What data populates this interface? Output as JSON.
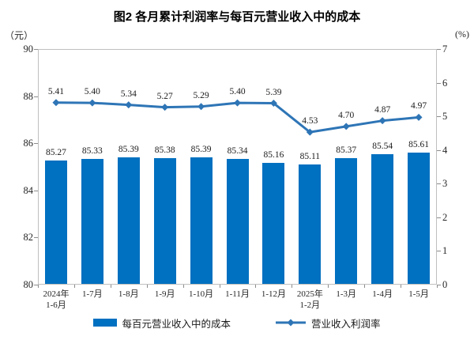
{
  "title": "图2  各月累计利润率与每百元营业收入中的成本",
  "chart_data": {
    "type": "bar",
    "subtype": "bar+line dual axis",
    "title": "图2  各月累计利润率与每百元营业收入中的成本",
    "categories": [
      "2024年\n1-6月",
      "1-7月",
      "1-8月",
      "1-9月",
      "1-10月",
      "1-11月",
      "1-12月",
      "2025年\n1-2月",
      "1-3月",
      "1-4月",
      "1-5月"
    ],
    "series": [
      {
        "name": "每百元营业收入中的成本",
        "type": "bar",
        "axis": "left",
        "color": "#0070C0",
        "values": [
          85.27,
          85.33,
          85.39,
          85.38,
          85.39,
          85.34,
          85.16,
          85.11,
          85.37,
          85.54,
          85.61
        ]
      },
      {
        "name": "营业收入利润率",
        "type": "line",
        "axis": "right",
        "color": "#2E75B6",
        "values": [
          5.41,
          5.4,
          5.34,
          5.27,
          5.29,
          5.4,
          5.39,
          4.53,
          4.7,
          4.87,
          4.97
        ]
      }
    ],
    "left_axis": {
      "unit": "（元）",
      "min": 80,
      "max": 90,
      "ticks": [
        90,
        88,
        86,
        84,
        82,
        80
      ]
    },
    "right_axis": {
      "unit": "(%)",
      "min": 0,
      "max": 7,
      "ticks": [
        7,
        6,
        5,
        4,
        3,
        2,
        1,
        0
      ]
    },
    "grid": false,
    "legend_position": "bottom",
    "data_labels": true,
    "border_color": "#bfbfbf"
  }
}
